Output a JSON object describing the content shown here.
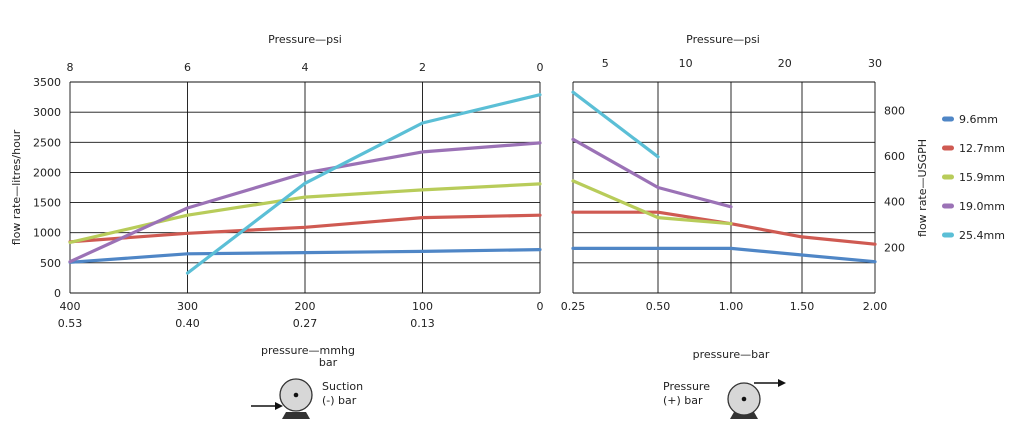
{
  "chart_data": [
    {
      "type": "line",
      "panel": "suction",
      "top_axis_label": "Pressure—psi",
      "top_ticks": [
        "8",
        "6",
        "4",
        "2",
        "0"
      ],
      "ylabel": "flow rate—litres/hour",
      "ylim": [
        0,
        3500
      ],
      "yticks": [
        "0",
        "500",
        "1000",
        "1500",
        "2000",
        "2500",
        "3000",
        "3500"
      ],
      "x_ticks_mmhg": [
        "400",
        "300",
        "200",
        "100",
        "0"
      ],
      "x_ticks_bar": [
        "0.53",
        "0.40",
        "0.27",
        "0.13",
        ""
      ],
      "xlabel_line1": "pressure—mmhg",
      "xlabel_line2": "bar",
      "xlim": [
        400,
        0
      ],
      "series": [
        {
          "name": "9.6mm",
          "x": [
            400,
            300,
            200,
            100,
            0
          ],
          "y": [
            510,
            650,
            670,
            690,
            720
          ]
        },
        {
          "name": "12.7mm",
          "x": [
            400,
            300,
            200,
            100,
            0
          ],
          "y": [
            850,
            990,
            1090,
            1250,
            1290
          ]
        },
        {
          "name": "15.9mm",
          "x": [
            400,
            300,
            200,
            100,
            0
          ],
          "y": [
            840,
            1290,
            1590,
            1710,
            1810
          ]
        },
        {
          "name": "19.0mm",
          "x": [
            400,
            300,
            200,
            100,
            0
          ],
          "y": [
            520,
            1410,
            1990,
            2340,
            2490
          ]
        },
        {
          "name": "25.4mm",
          "x": [
            300,
            200,
            100,
            0
          ],
          "y": [
            330,
            1820,
            2820,
            3290
          ]
        }
      ]
    },
    {
      "type": "line",
      "panel": "pressure",
      "top_axis_label": "Pressure—psi",
      "top_ticks": [
        "5",
        "10",
        "20",
        "30"
      ],
      "ylabel": "flow rate—USGPH",
      "yticks": [
        "200",
        "400",
        "600",
        "800"
      ],
      "x_ticks": [
        "0.25",
        "0.50",
        "1.00",
        "1.50",
        "2.00"
      ],
      "xlabel": "pressure—bar",
      "series": [
        {
          "name": "9.6mm",
          "x": [
            0.25,
            0.5,
            1.0,
            1.5,
            2.0
          ],
          "y": [
            740,
            740,
            740,
            630,
            520
          ]
        },
        {
          "name": "12.7mm",
          "x": [
            0.25,
            0.5,
            1.0,
            1.5,
            2.0
          ],
          "y": [
            1340,
            1340,
            1150,
            930,
            810
          ]
        },
        {
          "name": "15.9mm",
          "x": [
            0.25,
            0.5,
            1.0
          ],
          "y": [
            1860,
            1250,
            1150
          ]
        },
        {
          "name": "19.0mm",
          "x": [
            0.25,
            0.5,
            1.0
          ],
          "y": [
            2550,
            1750,
            1430
          ]
        },
        {
          "name": "25.4mm",
          "x": [
            0.25,
            0.5
          ],
          "y": [
            3330,
            2260
          ]
        }
      ]
    }
  ],
  "legend": [
    {
      "label": "9.6mm",
      "color": "#4f86c6"
    },
    {
      "label": "12.7mm",
      "color": "#cf5a52"
    },
    {
      "label": "15.9mm",
      "color": "#b8cc5a"
    },
    {
      "label": "19.0mm",
      "color": "#9b72b6"
    },
    {
      "label": "25.4mm",
      "color": "#5bbfd6"
    }
  ],
  "icons": {
    "suction_label_1": "Suction",
    "suction_label_2": "(-) bar",
    "pressure_label_1": "Pressure",
    "pressure_label_2": "(+) bar",
    "pump_icon": "pump-icon",
    "arrow_icon": "arrow-right-icon"
  }
}
